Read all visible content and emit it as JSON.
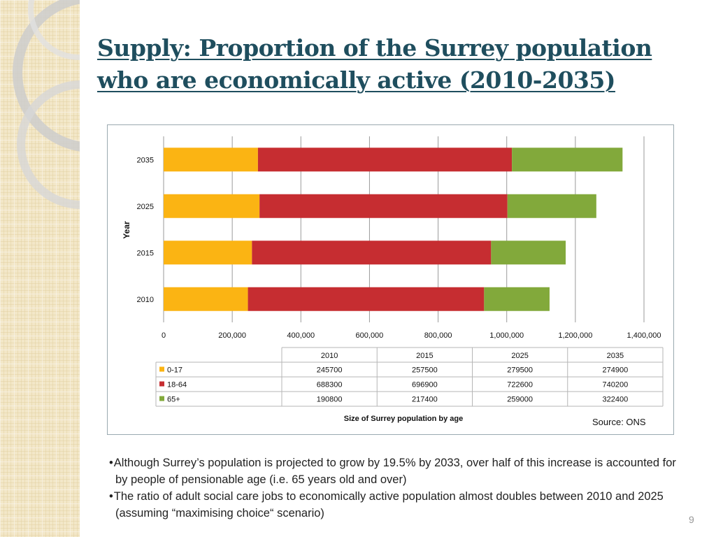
{
  "slide": {
    "title": "Supply: Proportion of the Surrey population who are economically active (2010-2035)",
    "source": "Source: ONS",
    "bullets": [
      "Although Surrey’s population is projected to grow by 19.5% by 2033, over half of this increase is accounted for by people of pensionable age (i.e. 65 years old and over)",
      "The ratio of  adult social care jobs to economically active population almost doubles between 2010 and 2025 (assuming “maximising choice“ scenario)"
    ],
    "page_number": "9"
  },
  "chart_data": {
    "type": "bar",
    "orientation": "horizontal",
    "stacked": true,
    "categories": [
      "2010",
      "2015",
      "2025",
      "2035"
    ],
    "series": [
      {
        "name": "0-17",
        "values": [
          245700,
          257500,
          279500,
          274900
        ],
        "color": "#fbb413"
      },
      {
        "name": "18-64",
        "values": [
          688300,
          696900,
          722600,
          740200
        ],
        "color": "#c62d31"
      },
      {
        "name": "65+",
        "values": [
          190800,
          217400,
          259000,
          322400
        ],
        "color": "#82a93b"
      }
    ],
    "xlim": [
      0,
      1400000
    ],
    "xticks": [
      "0",
      "200,000",
      "400,000",
      "600,000",
      "800,000",
      "1,000,000",
      "1,200,000",
      "1,400,000"
    ],
    "xlabel": "Size of Surrey population by age",
    "ylabel": "Year",
    "grid": true,
    "legend": "data table below chart",
    "data_table": {
      "headers": [
        "2010",
        "2015",
        "2025",
        "2035"
      ],
      "rows": [
        {
          "label": "0-17",
          "cells": [
            "245700",
            "257500",
            "279500",
            "274900"
          ]
        },
        {
          "label": "18-64",
          "cells": [
            "688300",
            "696900",
            "722600",
            "740200"
          ]
        },
        {
          "label": "65+",
          "cells": [
            "190800",
            "217400",
            "259000",
            "322400"
          ]
        }
      ]
    }
  }
}
